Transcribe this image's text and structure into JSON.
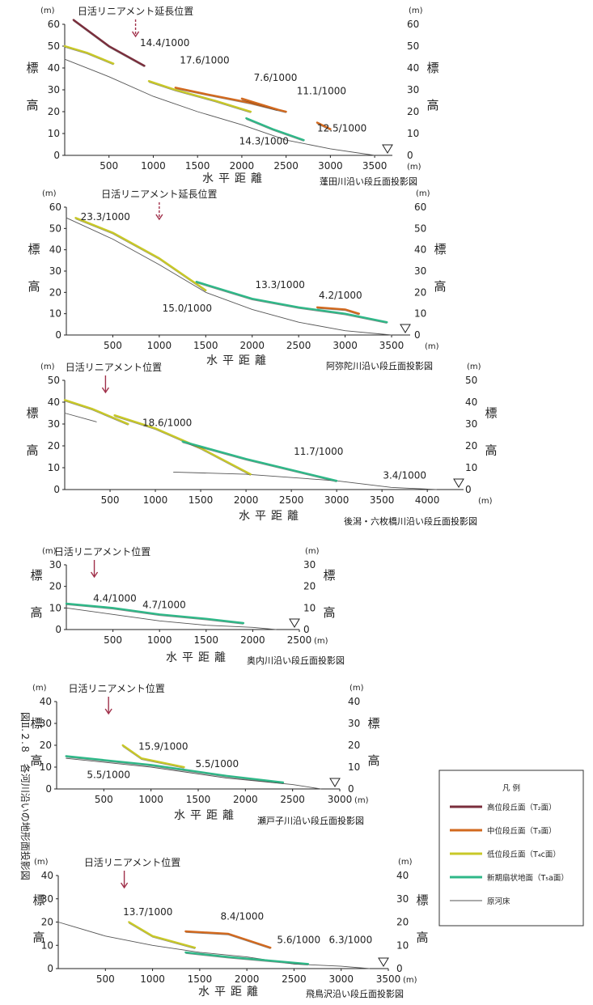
{
  "figure_title": "図Ⅱ.２.８　各河川沿いの地形面投影図",
  "legend": {
    "title": "凡 例",
    "items": [
      {
        "label": "高位段丘面（T₂面）",
        "color": "#7a2e3c"
      },
      {
        "label": "中位段丘面（T₃面）",
        "color": "#d2691e"
      },
      {
        "label": "低位段丘面（T₄c面）",
        "color": "#c8c828"
      },
      {
        "label": "新期扇状地面（T₅a面）",
        "color": "#2fb888"
      },
      {
        "label": "原河床",
        "color": "#555555"
      }
    ]
  },
  "chart_data": [
    {
      "type": "line",
      "caption": "蓬田川沿い段丘面投影図",
      "xlabel": "水平距離",
      "ylabel": "標高",
      "unit": "(m)",
      "xlim": [
        0,
        3700
      ],
      "ylim": [
        0,
        60
      ],
      "xticks": [
        500,
        1000,
        1500,
        2000,
        2500,
        3000,
        3500
      ],
      "yticks": [
        0,
        10,
        20,
        30,
        40,
        50,
        60
      ],
      "lineament": {
        "label": "日活リニアメント延長位置",
        "x": 800
      },
      "gradients": [
        {
          "text": "14.4/1000",
          "x": 1130,
          "y": 50
        },
        {
          "text": "17.6/1000",
          "x": 1580,
          "y": 42
        },
        {
          "text": "7.6/1000",
          "x": 2380,
          "y": 34
        },
        {
          "text": "11.1/1000",
          "x": 2900,
          "y": 28
        },
        {
          "text": "12.5/1000",
          "x": 3130,
          "y": 11
        },
        {
          "text": "14.3/1000",
          "x": 2250,
          "y": 5
        }
      ],
      "series": [
        {
          "name": "原河床",
          "x": [
            0,
            500,
            1000,
            1500,
            2000,
            2500,
            3000,
            3500
          ],
          "y": [
            44,
            36,
            27,
            20,
            14,
            7,
            3,
            0
          ]
        },
        {
          "name": "高位段丘面（T₂面）",
          "x": [
            100,
            500,
            900
          ],
          "y": [
            62,
            50,
            41
          ]
        },
        {
          "name": "中位段丘面（T₃面）",
          "x": [
            1250,
            1600,
            2100,
            2500
          ],
          "y": [
            31,
            28,
            24,
            20
          ]
        },
        {
          "name": "中位段丘面（T₃面）",
          "x": [
            2000,
            2400
          ],
          "y": [
            26,
            21
          ]
        },
        {
          "name": "中位段丘面（T₃面）",
          "x": [
            2850,
            3000
          ],
          "y": [
            15,
            12
          ]
        },
        {
          "name": "低位段丘面（T₄c面）",
          "x": [
            0,
            250,
            550
          ],
          "y": [
            50,
            47,
            42
          ]
        },
        {
          "name": "低位段丘面（T₄c面）",
          "x": [
            950,
            1250,
            1700,
            2100
          ],
          "y": [
            34,
            30,
            25,
            20
          ]
        },
        {
          "name": "新期扇状地面（T₅a面）",
          "x": [
            2050,
            2350,
            2700
          ],
          "y": [
            17,
            12,
            7
          ]
        }
      ]
    },
    {
      "type": "line",
      "caption": "阿弥陀川沿い段丘面投影図",
      "xlabel": "水平距離",
      "ylabel": "標高",
      "unit": "(m)",
      "xlim": [
        0,
        3700
      ],
      "ylim": [
        0,
        60
      ],
      "xticks": [
        500,
        1000,
        1500,
        2000,
        2500,
        3000,
        3500
      ],
      "yticks": [
        0,
        10,
        20,
        30,
        40,
        50,
        60
      ],
      "lineament": {
        "label": "日活リニアメント延長位置",
        "x": 1000
      },
      "gradients": [
        {
          "text": "23.3/1000",
          "x": 420,
          "y": 54
        },
        {
          "text": "13.3/1000",
          "x": 2300,
          "y": 22
        },
        {
          "text": "4.2/1000",
          "x": 2950,
          "y": 17
        },
        {
          "text": "15.0/1000",
          "x": 1300,
          "y": 11
        }
      ],
      "series": [
        {
          "name": "原河床",
          "x": [
            0,
            500,
            1000,
            1500,
            2000,
            2500,
            3000,
            3500
          ],
          "y": [
            55,
            45,
            33,
            20,
            12,
            6,
            2,
            0
          ]
        },
        {
          "name": "低位段丘面（T₄c面）",
          "x": [
            100,
            500,
            1000,
            1500
          ],
          "y": [
            55,
            48,
            36,
            21
          ]
        },
        {
          "name": "新期扇状地面（T₅a面）",
          "x": [
            1400,
            2000,
            2500,
            3000,
            3450
          ],
          "y": [
            25,
            17,
            13,
            10,
            6
          ]
        },
        {
          "name": "中位段丘面（T₃面）",
          "x": [
            2700,
            3000,
            3150
          ],
          "y": [
            13,
            12,
            10
          ]
        }
      ]
    },
    {
      "type": "line",
      "caption": "後潟・六枚橋川沿い段丘面投影図",
      "xlabel": "水平距離",
      "ylabel": "標高",
      "unit": "(m)",
      "xlim": [
        0,
        4400
      ],
      "ylim": [
        0,
        50
      ],
      "xticks": [
        500,
        1000,
        1500,
        2000,
        2500,
        3000,
        3500,
        4000
      ],
      "yticks": [
        0,
        10,
        20,
        30,
        40,
        50
      ],
      "lineament": {
        "label": "日活リニアメント位置",
        "x": 450
      },
      "gradients": [
        {
          "text": "18.6/1000",
          "x": 1130,
          "y": 29
        },
        {
          "text": "11.7/1000",
          "x": 2800,
          "y": 16
        },
        {
          "text": "3.4/1000",
          "x": 3750,
          "y": 5
        }
      ],
      "series": [
        {
          "name": "原河床",
          "x": [
            0,
            350
          ],
          "y": [
            35,
            31
          ]
        },
        {
          "name": "原河床",
          "x": [
            1200,
            2000,
            3000,
            3600,
            4100
          ],
          "y": [
            8,
            7,
            4,
            1,
            0
          ]
        },
        {
          "name": "低位段丘面（T₄c面）",
          "x": [
            0,
            300,
            700
          ],
          "y": [
            41,
            37,
            30
          ]
        },
        {
          "name": "低位段丘面（T₄c面）",
          "x": [
            550,
            1000,
            1500,
            2050
          ],
          "y": [
            34,
            28,
            19,
            7
          ]
        },
        {
          "name": "新期扇状地面（T₅a面）",
          "x": [
            1300,
            2000,
            3000
          ],
          "y": [
            22,
            14,
            4
          ]
        }
      ]
    },
    {
      "type": "line",
      "caption": "奥内川沿い段丘面投影図",
      "xlabel": "水平距離",
      "ylabel": "標高",
      "unit": "(m)",
      "xlim": [
        0,
        2500
      ],
      "ylim": [
        0,
        30
      ],
      "xticks": [
        500,
        1000,
        1500,
        2000,
        2500
      ],
      "yticks": [
        0,
        10,
        20,
        30
      ],
      "lineament": {
        "label": "日活リニアメント位置",
        "x": 300
      },
      "gradients": [
        {
          "text": "4.4/1000",
          "x": 520,
          "y": 13
        },
        {
          "text": "4.7/1000",
          "x": 1050,
          "y": 10
        }
      ],
      "series": [
        {
          "name": "原河床",
          "x": [
            0,
            500,
            1000,
            1500,
            2000,
            2250
          ],
          "y": [
            10,
            7,
            4,
            2,
            1,
            0
          ]
        },
        {
          "name": "新期扇状地面（T₅a面）",
          "x": [
            0,
            500,
            1000,
            1500,
            1900
          ],
          "y": [
            12,
            10,
            7,
            5,
            3
          ]
        }
      ]
    },
    {
      "type": "line",
      "caption": "瀬戸子川沿い段丘面投影図",
      "xlabel": "水平距離",
      "ylabel": "標高",
      "unit": "(m)",
      "xlim": [
        0,
        3000
      ],
      "ylim": [
        0,
        40
      ],
      "xticks": [
        500,
        1000,
        1500,
        2000,
        2500,
        3000
      ],
      "yticks": [
        0,
        10,
        20,
        30,
        40
      ],
      "lineament": {
        "label": "日活リニアメント位置",
        "x": 550
      },
      "gradients": [
        {
          "text": "15.9/1000",
          "x": 1130,
          "y": 18
        },
        {
          "text": "5.5/1000",
          "x": 1700,
          "y": 10
        },
        {
          "text": "5.5/1000",
          "x": 550,
          "y": 5
        }
      ],
      "series": [
        {
          "name": "原河床",
          "x": [
            100,
            1000,
            1800,
            2500,
            2800
          ],
          "y": [
            14,
            10,
            5,
            2,
            0
          ]
        },
        {
          "name": "新期扇状地面（T₅a面）",
          "x": [
            100,
            1000,
            1800,
            2400
          ],
          "y": [
            15,
            11,
            6,
            3
          ]
        },
        {
          "name": "低位段丘面（T₄c面）",
          "x": [
            700,
            900,
            1350
          ],
          "y": [
            20,
            14,
            10
          ]
        }
      ]
    },
    {
      "type": "line",
      "caption": "飛鳥沢沿い段丘面投影図",
      "xlabel": "水平距離",
      "ylabel": "標高",
      "unit": "(m)",
      "xlim": [
        0,
        3500
      ],
      "ylim": [
        0,
        40
      ],
      "xticks": [
        500,
        1000,
        1500,
        2000,
        2500,
        3000,
        3500
      ],
      "yticks": [
        0,
        10,
        20,
        30,
        40
      ],
      "lineament": {
        "label": "日活リニアメント位置",
        "x": 700
      },
      "gradients": [
        {
          "text": "13.7/1000",
          "x": 950,
          "y": 23
        },
        {
          "text": "8.4/1000",
          "x": 1950,
          "y": 21
        },
        {
          "text": "5.6/1000",
          "x": 2550,
          "y": 11
        },
        {
          "text": "6.3/1000",
          "x": 3100,
          "y": 11
        }
      ],
      "series": [
        {
          "name": "原河床",
          "x": [
            0,
            500,
            1000,
            1500,
            2000,
            2500,
            3000,
            3300
          ],
          "y": [
            20,
            14,
            10,
            7,
            5,
            2,
            1,
            0
          ]
        },
        {
          "name": "低位段丘面（T₄c面）",
          "x": [
            750,
            1000,
            1450
          ],
          "y": [
            20,
            14,
            9
          ]
        },
        {
          "name": "中位段丘面（T₃面）",
          "x": [
            1350,
            1800,
            2250
          ],
          "y": [
            16,
            15,
            9
          ]
        },
        {
          "name": "新期扇状地面（T₅a面）",
          "x": [
            1350,
            1800,
            2650
          ],
          "y": [
            7,
            5,
            2
          ]
        }
      ]
    }
  ]
}
